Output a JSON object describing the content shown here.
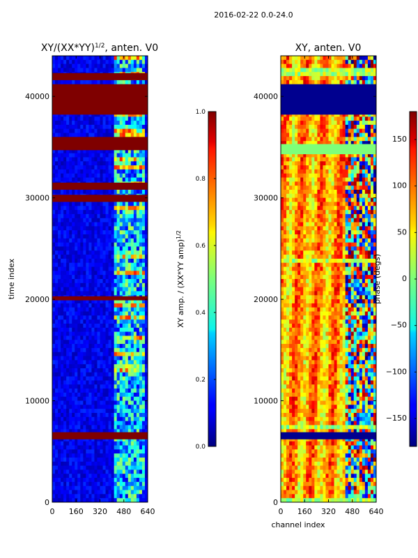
{
  "figure": {
    "suptitle": "2016-02-22 0.0-24.0"
  },
  "chart_data": [
    {
      "type": "heatmap",
      "title_main": "XY/(XX*YY)",
      "title_sup": "1/2",
      "title_suffix": ", anten. V0",
      "xlabel": "",
      "ylabel": "time index",
      "xlim": [
        0,
        640
      ],
      "ylim": [
        0,
        44000
      ],
      "xticks": [
        0,
        160,
        320,
        480,
        640
      ],
      "yticks": [
        0,
        10000,
        20000,
        30000,
        40000
      ],
      "colormap": "jet",
      "value_range": [
        0.0,
        1.0
      ],
      "flagged_rows": [
        [
          6200,
          6900
        ],
        [
          29600,
          30300
        ],
        [
          30800,
          31500
        ],
        [
          34700,
          36000
        ],
        [
          38200,
          41200
        ],
        [
          41600,
          42300
        ],
        [
          19900,
          20300
        ]
      ],
      "active_channel_band": [
        420,
        620
      ],
      "colorbar": {
        "label_main": "XY amp. / (XX*YY amp)",
        "label_sup": "1/2",
        "ticks": [
          0.0,
          0.2,
          0.4,
          0.6,
          0.8,
          1.0
        ],
        "tick_labels": [
          "0.0",
          "0.2",
          "0.4",
          "0.6",
          "0.8",
          "1.0"
        ]
      }
    },
    {
      "type": "heatmap",
      "title": "XY, anten. V0",
      "xlabel": "channel index",
      "ylabel": "",
      "xlim": [
        0,
        640
      ],
      "ylim": [
        0,
        44000
      ],
      "xticks": [
        0,
        160,
        320,
        480,
        640
      ],
      "yticks": [
        0,
        10000,
        20000,
        30000,
        40000
      ],
      "colormap": "jet",
      "value_range": [
        -180,
        180
      ],
      "flagged_rows": [
        [
          6200,
          6900
        ],
        [
          38200,
          41200
        ],
        [
          34300,
          35300
        ]
      ],
      "colorbar": {
        "label": "phase (degs)",
        "ticks": [
          -150,
          -100,
          -50,
          0,
          50,
          100,
          150
        ],
        "tick_labels": [
          "−150",
          "−100",
          "−50",
          "0",
          "50",
          "100",
          "150"
        ]
      }
    }
  ]
}
